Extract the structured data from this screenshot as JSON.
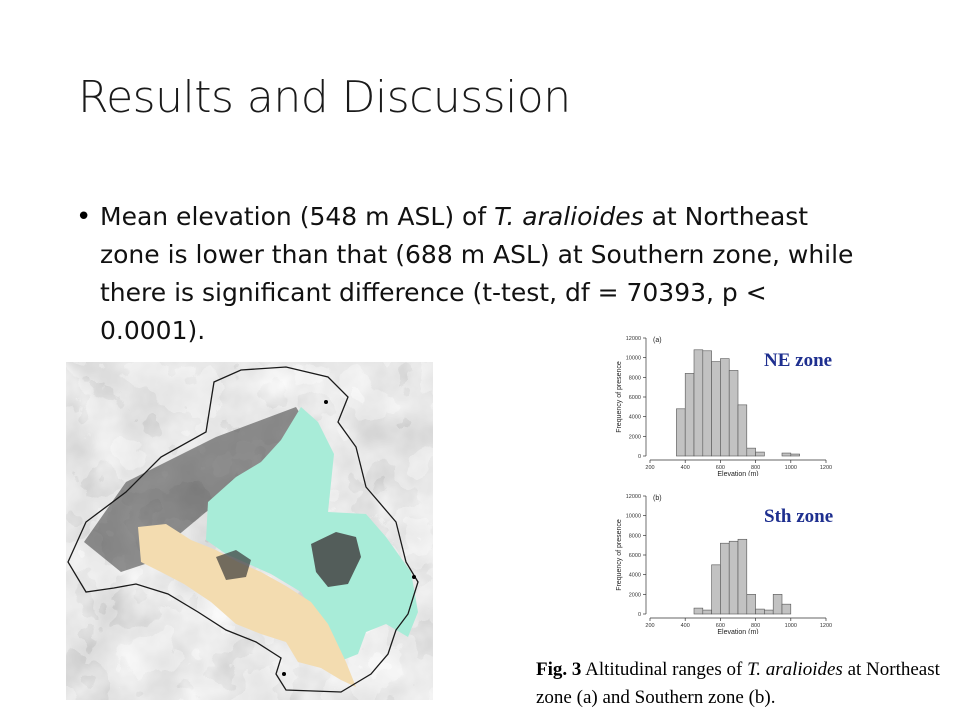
{
  "slide": {
    "title": "Results and Discussion",
    "bullet": {
      "part1": "Mean elevation (548 m ASL) of ",
      "species": "T. aralioides",
      "part2": " at Northeast zone is lower than that (688 m ASL) at Southern zone, while there is significant difference (t-test, df = 70393, p < 0.0001)."
    },
    "caption": {
      "fig_label": "Fig. 3",
      "text1": " Altitudinal ranges of ",
      "species": "T. aralioides",
      "text2": " at Northeast zone (a) and Southern zone (b)."
    },
    "colors": {
      "ne_zone_fill": "#a8ecd8",
      "south_zone_fill": "#f3dcb0",
      "bar_fill": "#c2c2c2",
      "zone_label_color": "#1e2f8f"
    }
  },
  "chart_data": [
    {
      "type": "bar",
      "panel": "(a)",
      "label": "NE zone",
      "xlabel": "Elevation (m)",
      "ylabel": "Frequency of presence",
      "xlim": [
        200,
        1200
      ],
      "ylim": [
        0,
        12000
      ],
      "xticks": [
        200,
        400,
        600,
        800,
        1000,
        1200
      ],
      "yticks": [
        0,
        2000,
        4000,
        6000,
        8000,
        10000,
        12000
      ],
      "bin_width": 50,
      "bin_starts": [
        350,
        400,
        450,
        500,
        550,
        600,
        650,
        700,
        750,
        800,
        850,
        900,
        950,
        1000
      ],
      "values": [
        4800,
        8400,
        10800,
        10700,
        9600,
        9900,
        8700,
        5200,
        800,
        400,
        0,
        0,
        300,
        200
      ]
    },
    {
      "type": "bar",
      "panel": "(b)",
      "label": "Sth zone",
      "xlabel": "Elevation (m)",
      "ylabel": "Frequency of presence",
      "xlim": [
        200,
        1200
      ],
      "ylim": [
        0,
        12000
      ],
      "xticks": [
        200,
        400,
        600,
        800,
        1000,
        1200
      ],
      "yticks": [
        0,
        2000,
        4000,
        6000,
        8000,
        10000,
        12000
      ],
      "bin_width": 50,
      "bin_starts": [
        450,
        500,
        550,
        600,
        650,
        700,
        750,
        800,
        850,
        900,
        950
      ],
      "values": [
        600,
        400,
        5000,
        7200,
        7400,
        7600,
        2000,
        500,
        400,
        2000,
        1000
      ]
    }
  ]
}
